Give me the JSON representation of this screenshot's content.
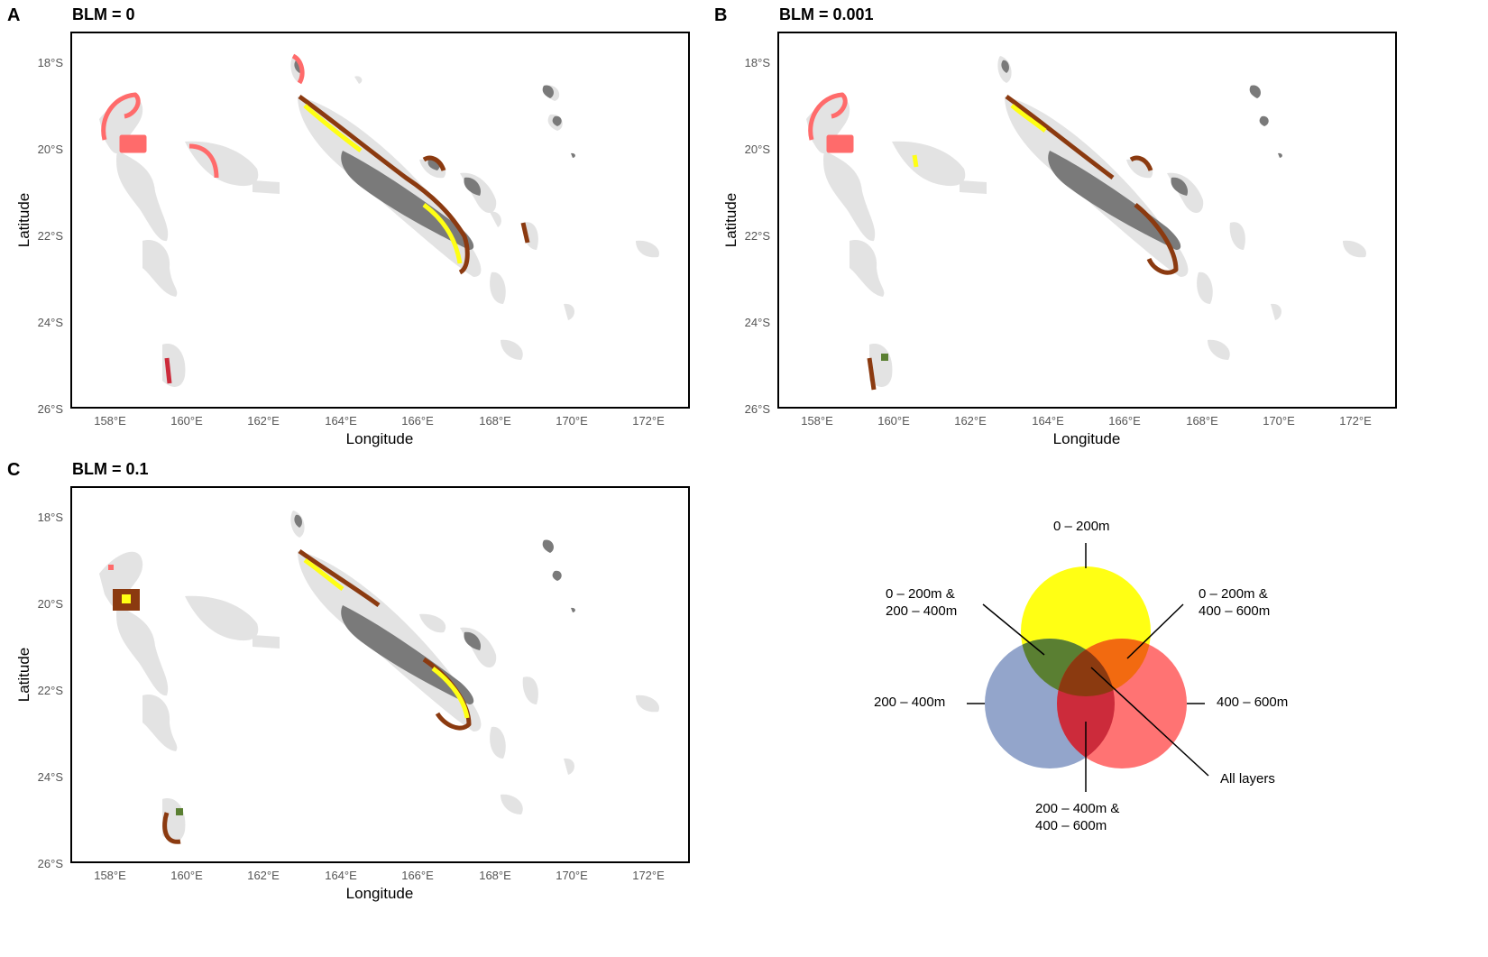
{
  "panels": [
    {
      "letter": "A",
      "title": "BLM = 0"
    },
    {
      "letter": "B",
      "title": "BLM = 0.001"
    },
    {
      "letter": "C",
      "title": "BLM = 0.1"
    }
  ],
  "axes": {
    "xlabel": "Longitude",
    "ylabel": "Latitude",
    "xticks": [
      "158°E",
      "160°E",
      "162°E",
      "164°E",
      "166°E",
      "168°E",
      "170°E",
      "172°E"
    ],
    "yticks": [
      "18°S",
      "20°S",
      "22°S",
      "24°S",
      "26°S"
    ]
  },
  "colors": {
    "land": "#7a7a7a",
    "reef_background": "#e3e3e3",
    "layer_0_200": "#ffff14",
    "layer_200_400": "#8da0c8",
    "layer_400_600": "#ff6b6b",
    "overlap_0_200_200_400": "#5a7f32",
    "overlap_0_200_400_600": "#f26a10",
    "overlap_200_400_400_600": "#cc2b3b",
    "all_layers": "#8b3a10"
  },
  "legend": {
    "l0_200": "0 – 200m",
    "l0_200_200_400_a": "0 – 200m &",
    "l0_200_200_400_b": "200 – 400m",
    "l0_200_400_600_a": "0 – 200m &",
    "l0_200_400_600_b": "400 – 600m",
    "l200_400": "200 – 400m",
    "l400_600": "400 – 600m",
    "all": "All layers",
    "l200_400_400_600_a": "200 – 400m &",
    "l200_400_400_600_b": "400 – 600m"
  }
}
